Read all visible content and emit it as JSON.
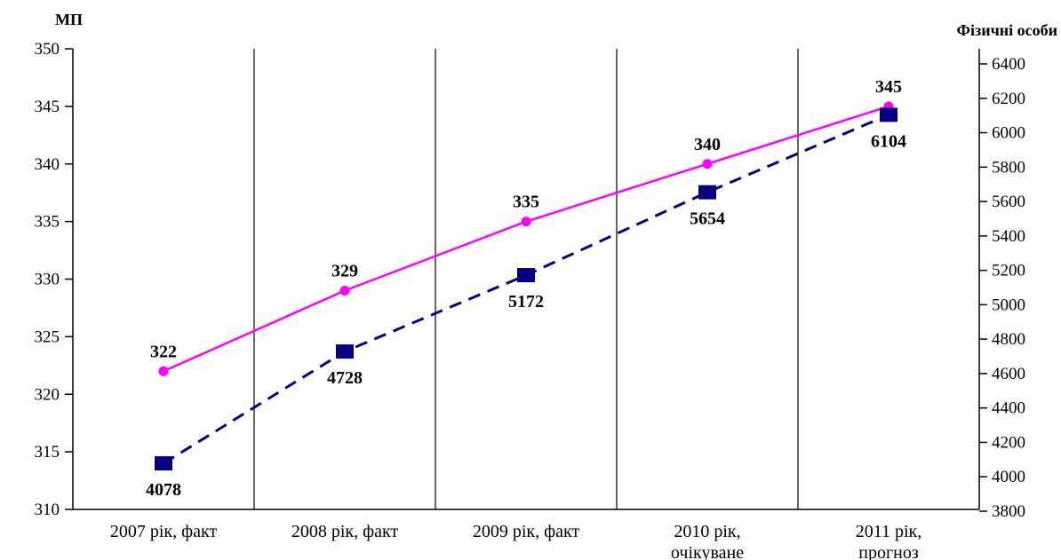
{
  "chart_data": {
    "type": "line",
    "categories": [
      [
        "2007 рік, факт"
      ],
      [
        "2008 рік, факт"
      ],
      [
        "2009 рік, факт"
      ],
      [
        "2010 рік,",
        "очікуване"
      ],
      [
        "2011 рік,",
        "прогноз"
      ]
    ],
    "left_axis": {
      "title": "МП",
      "range": [
        310,
        350
      ],
      "ticks": [
        310,
        315,
        320,
        325,
        330,
        335,
        340,
        345,
        350
      ]
    },
    "right_axis": {
      "title": "Фізичні особи",
      "range": [
        3800,
        6400
      ],
      "ticks": [
        3800,
        4000,
        4200,
        4400,
        4600,
        4800,
        5000,
        5200,
        5400,
        5600,
        5800,
        6000,
        6200,
        6400
      ]
    },
    "series": [
      {
        "axis": "left",
        "color": "#ff00ff",
        "style": "solid",
        "marker": "circle",
        "values": [
          322,
          329,
          335,
          340,
          345
        ]
      },
      {
        "axis": "right",
        "color": "#000080",
        "style": "dashed",
        "marker": "square",
        "values": [
          4078,
          4728,
          5172,
          5654,
          6104
        ]
      }
    ],
    "grid": "vertical separators between categories",
    "legend": "none"
  }
}
